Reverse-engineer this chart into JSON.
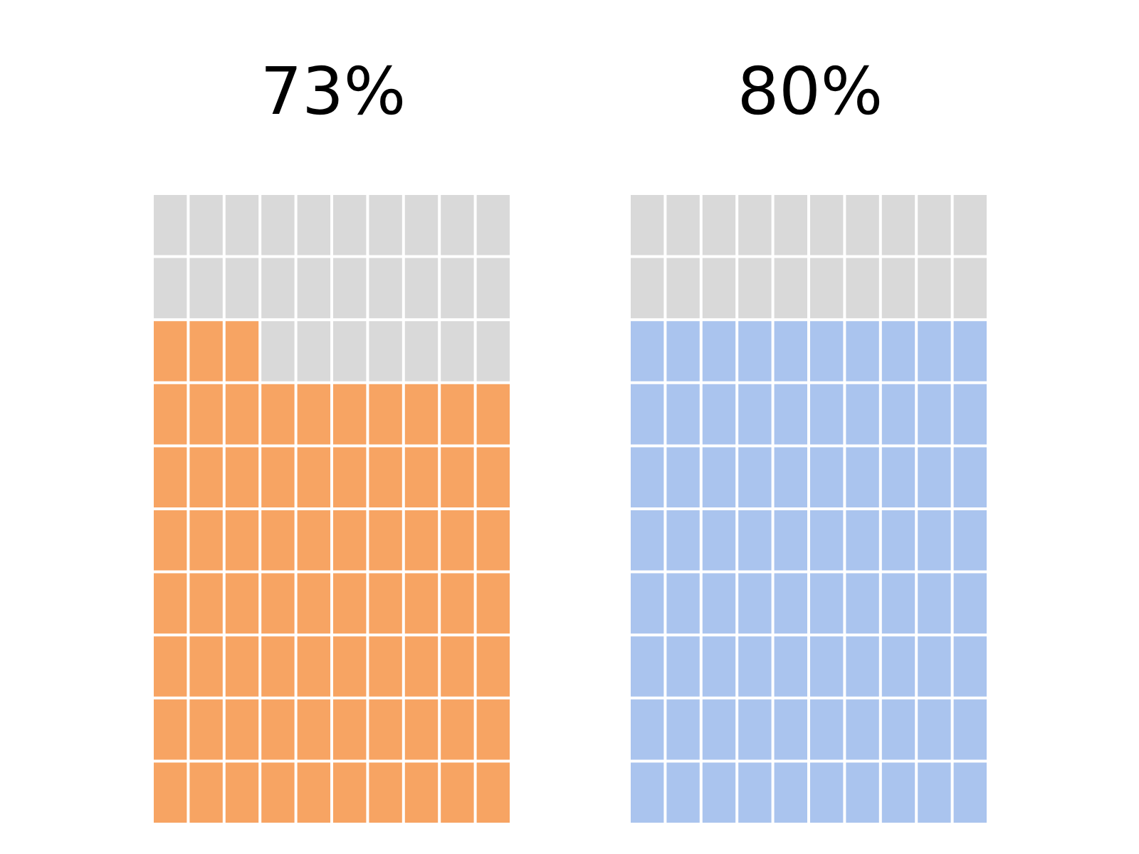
{
  "chart_data": [
    {
      "type": "other",
      "values": [
        73
      ],
      "value_labels": [
        "73%"
      ],
      "colors": [
        "#f7a463"
      ]
    },
    {
      "type": "other",
      "values": [
        80
      ],
      "value_labels": [
        "80%"
      ],
      "colors": [
        "#aac4ee"
      ]
    }
  ]
}
